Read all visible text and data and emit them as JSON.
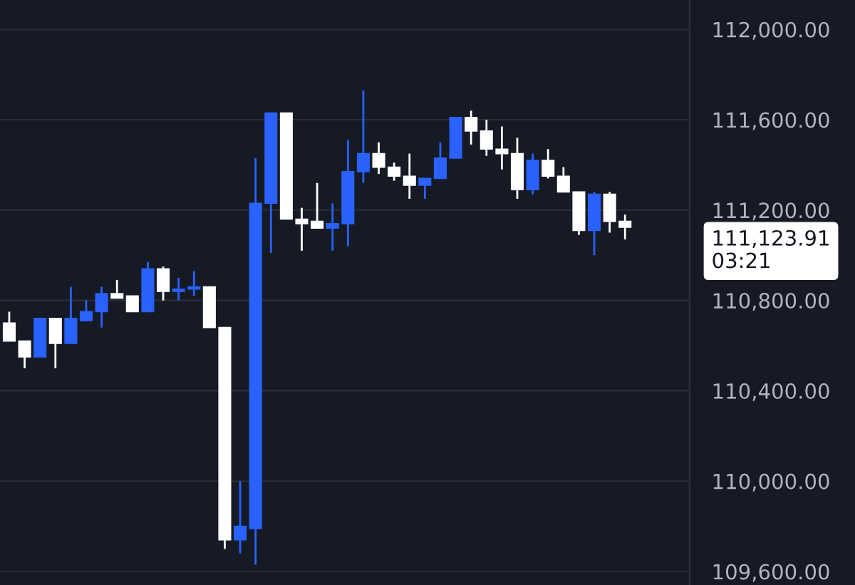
{
  "chart_data": {
    "type": "candlestick",
    "categories": [
      null,
      null,
      null,
      null,
      null,
      null,
      null,
      null,
      null,
      null,
      null,
      null,
      null,
      null,
      null,
      null,
      null,
      null,
      null,
      null,
      null,
      null,
      null,
      null,
      null,
      null,
      null,
      null,
      null,
      null,
      null,
      null,
      null,
      null,
      null,
      null,
      null,
      null,
      null,
      null,
      null
    ],
    "ohlc": [
      [
        110700,
        110750,
        110620,
        110620
      ],
      [
        110620,
        110620,
        110500,
        110550
      ],
      [
        110550,
        110720,
        110550,
        110720
      ],
      [
        110720,
        110720,
        110500,
        110610
      ],
      [
        110610,
        110860,
        110610,
        110720
      ],
      [
        110710,
        110800,
        110710,
        110750
      ],
      [
        110750,
        110860,
        110680,
        110830
      ],
      [
        110830,
        110890,
        110810,
        110810
      ],
      [
        110820,
        110820,
        110750,
        110750
      ],
      [
        110750,
        110970,
        110750,
        110940
      ],
      [
        110940,
        110950,
        110800,
        110840
      ],
      [
        110840,
        110900,
        110800,
        110850
      ],
      [
        110850,
        110930,
        110820,
        110860
      ],
      [
        110860,
        110860,
        110680,
        110680
      ],
      [
        110680,
        110680,
        109700,
        109740
      ],
      [
        109740,
        110000,
        109680,
        109800
      ],
      [
        109790,
        111430,
        109630,
        111230
      ],
      [
        111230,
        111630,
        111010,
        111630
      ],
      [
        111630,
        111630,
        111160,
        111160
      ],
      [
        111160,
        111210,
        111020,
        111140
      ],
      [
        111150,
        111320,
        111120,
        111120
      ],
      [
        111120,
        111230,
        111020,
        111140
      ],
      [
        111140,
        111510,
        111040,
        111370
      ],
      [
        111370,
        111730,
        111320,
        111450
      ],
      [
        111450,
        111500,
        111360,
        111390
      ],
      [
        111390,
        111410,
        111330,
        111350
      ],
      [
        111350,
        111450,
        111250,
        111310
      ],
      [
        111310,
        111340,
        111250,
        111340
      ],
      [
        111340,
        111500,
        111340,
        111430
      ],
      [
        111430,
        111610,
        111430,
        111610
      ],
      [
        111610,
        111640,
        111490,
        111550
      ],
      [
        111550,
        111600,
        111440,
        111470
      ],
      [
        111470,
        111570,
        111380,
        111450
      ],
      [
        111450,
        111520,
        111250,
        111290
      ],
      [
        111290,
        111450,
        111270,
        111420
      ],
      [
        111420,
        111470,
        111340,
        111350
      ],
      [
        111350,
        111390,
        111280,
        111280
      ],
      [
        111280,
        111280,
        111090,
        111110
      ],
      [
        111110,
        111280,
        111000,
        111270
      ],
      [
        111270,
        111280,
        111100,
        111150
      ],
      [
        111150,
        111180,
        111070,
        111123.91
      ]
    ],
    "colors": [
      "#ffffff",
      "#ffffff",
      "#2962ff",
      "#ffffff",
      "#2962ff",
      "#2962ff",
      "#2962ff",
      "#ffffff",
      "#ffffff",
      "#2962ff",
      "#ffffff",
      "#2962ff",
      "#2962ff",
      "#ffffff",
      "#ffffff",
      "#2962ff",
      "#2962ff",
      "#2962ff",
      "#ffffff",
      "#ffffff",
      "#ffffff",
      "#2962ff",
      "#2962ff",
      "#2962ff",
      "#ffffff",
      "#ffffff",
      "#ffffff",
      "#2962ff",
      "#2962ff",
      "#2962ff",
      "#ffffff",
      "#ffffff",
      "#ffffff",
      "#ffffff",
      "#2962ff",
      "#ffffff",
      "#ffffff",
      "#ffffff",
      "#2962ff",
      "#ffffff",
      "#ffffff"
    ],
    "ylim": [
      109540,
      112130
    ],
    "yticks": [
      {
        "value": 109600,
        "label": "109,600.00"
      },
      {
        "value": 110000,
        "label": "110,000.00"
      },
      {
        "value": 110400,
        "label": "110,400.00"
      },
      {
        "value": 110800,
        "label": "110,800.00"
      },
      {
        "value": 111200,
        "label": "111,200.00"
      },
      {
        "value": 111600,
        "label": "111,600.00"
      },
      {
        "value": 112000,
        "label": "112,000.00"
      }
    ],
    "grid": "y",
    "annotations": [
      "111,123.91\n03:21"
    ]
  }
}
